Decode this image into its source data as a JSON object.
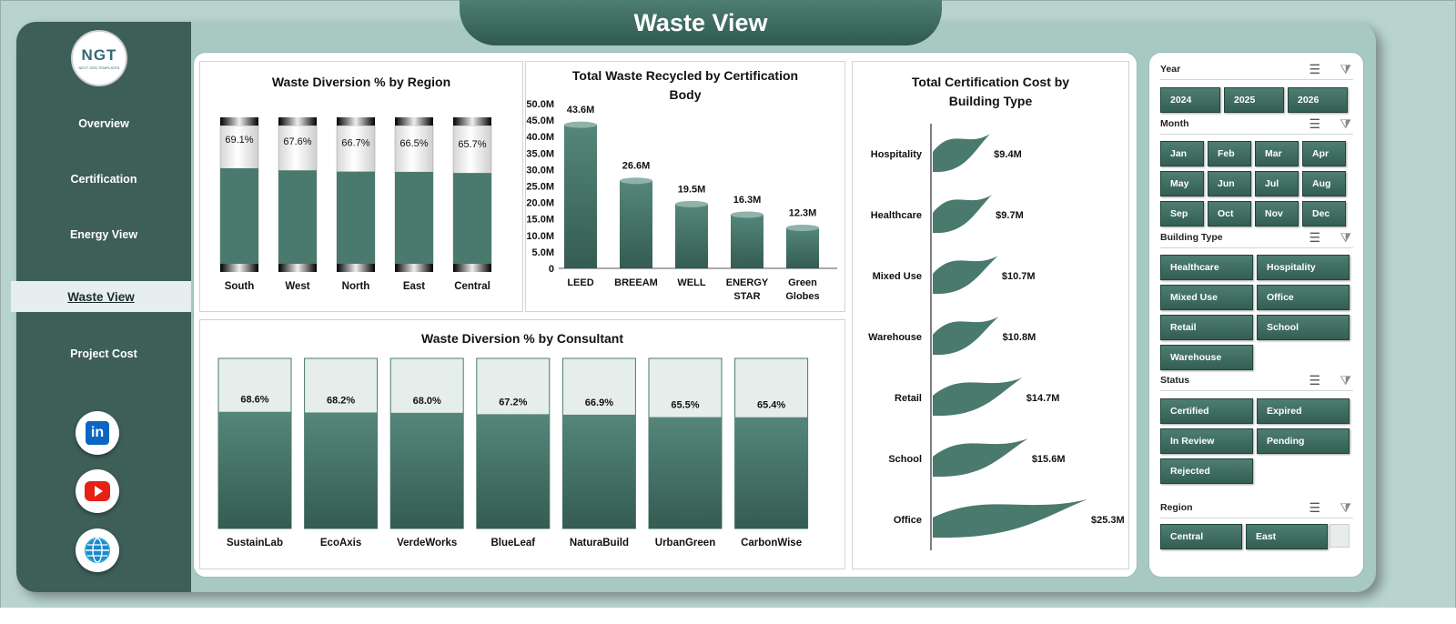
{
  "page_title": "Waste View",
  "logo": {
    "text": "NGT",
    "subtext": "NEXT GEN TEMPLATES"
  },
  "nav": {
    "items": [
      {
        "label": "Overview"
      },
      {
        "label": "Certification"
      },
      {
        "label": "Energy View"
      },
      {
        "label": "Waste View"
      },
      {
        "label": "Project Cost"
      }
    ],
    "active": "Waste View"
  },
  "social": {
    "linkedin_label": "in"
  },
  "colors": {
    "accent": "#4a7a6d",
    "sidebar": "#3d5f57",
    "frame": "#a8c9c2"
  },
  "chart_data": [
    {
      "type": "bar",
      "title": "Waste Diversion % by Region",
      "categories": [
        "South",
        "West",
        "North",
        "East",
        "Central"
      ],
      "values": [
        69.1,
        67.6,
        66.7,
        66.5,
        65.7
      ],
      "data_labels": [
        "69.1%",
        "67.6%",
        "66.7%",
        "66.5%",
        "65.7%"
      ],
      "ylim": [
        0,
        100
      ],
      "legend": "none"
    },
    {
      "type": "bar",
      "title": "Total Waste Recycled by Certification Body",
      "categories": [
        "LEED",
        "BREEAM",
        "WELL",
        "ENERGY STAR",
        "Green Globes"
      ],
      "values": [
        43.6,
        26.6,
        19.5,
        16.3,
        12.3
      ],
      "data_labels": [
        "43.6M",
        "26.6M",
        "19.5M",
        "16.3M",
        "12.3M"
      ],
      "yticks": [
        "0",
        "5.0M",
        "10.0M",
        "15.0M",
        "20.0M",
        "25.0M",
        "30.0M",
        "35.0M",
        "40.0M",
        "45.0M",
        "50.0M"
      ],
      "ylim": [
        0,
        50
      ],
      "legend": "none"
    },
    {
      "type": "bar",
      "title": "Total Certification Cost by Building Type",
      "orientation": "horizontal",
      "categories": [
        "Hospitality",
        "Healthcare",
        "Mixed Use",
        "Warehouse",
        "Retail",
        "School",
        "Office"
      ],
      "values": [
        9.4,
        9.7,
        10.7,
        10.8,
        14.7,
        15.6,
        25.3
      ],
      "data_labels": [
        "$9.4M",
        "$9.7M",
        "$10.7M",
        "$10.8M",
        "$14.7M",
        "$15.6M",
        "$25.3M"
      ],
      "legend": "none"
    },
    {
      "type": "bar",
      "title": "Waste Diversion % by Consultant",
      "categories": [
        "SustainLab",
        "EcoAxis",
        "VerdeWorks",
        "BlueLeaf",
        "NaturaBuild",
        "UrbanGreen",
        "CarbonWise"
      ],
      "values": [
        68.6,
        68.2,
        68.0,
        67.2,
        66.9,
        65.5,
        65.4
      ],
      "data_labels": [
        "68.6%",
        "68.2%",
        "68.0%",
        "67.2%",
        "66.9%",
        "65.5%",
        "65.4%"
      ],
      "ylim": [
        0,
        100
      ],
      "legend": "none"
    }
  ],
  "slicers": [
    {
      "label": "Year",
      "options": [
        "2024",
        "2025",
        "2026"
      ]
    },
    {
      "label": "Month",
      "options": [
        "Jan",
        "Feb",
        "Mar",
        "Apr",
        "May",
        "Jun",
        "Jul",
        "Aug",
        "Sep",
        "Oct",
        "Nov",
        "Dec"
      ]
    },
    {
      "label": "Building Type",
      "options": [
        "Healthcare",
        "Hospitality",
        "Mixed Use",
        "Office",
        "Retail",
        "School",
        "Warehouse"
      ]
    },
    {
      "label": "Status",
      "options": [
        "Certified",
        "Expired",
        "In Review",
        "Pending",
        "Rejected"
      ]
    },
    {
      "label": "Region",
      "options": [
        "Central",
        "East"
      ]
    }
  ]
}
